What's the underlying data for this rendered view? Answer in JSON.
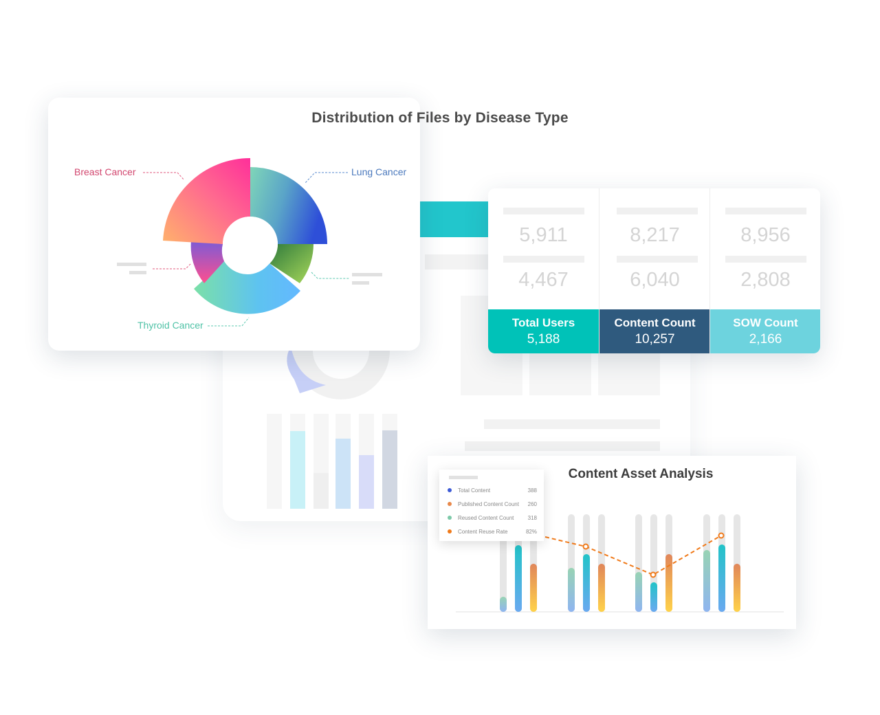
{
  "donut_card": {
    "title": "Distribution of Files by Disease Type",
    "labels": {
      "breast": "Breast Cancer",
      "lung": "Lung Cancer",
      "thyroid": "Thyroid Cancer"
    }
  },
  "stats": [
    {
      "faint_top": "5,911",
      "faint_bottom": "4,467",
      "label": "Total Users",
      "value": "5,188",
      "color": "#00c2b8"
    },
    {
      "faint_top": "8,217",
      "faint_bottom": "6,040",
      "label": "Content Count",
      "value": "10,257",
      "color": "#2f5a7e"
    },
    {
      "faint_top": "8,956",
      "faint_bottom": "2,808",
      "label": "SOW Count",
      "value": "2,166",
      "color": "#6dd3de"
    }
  ],
  "asset_card": {
    "title": "Content Asset Analysis",
    "legend": [
      {
        "name": "Total Content",
        "value": "388",
        "color": "#3d5bd6"
      },
      {
        "name": "Published Content Count",
        "value": "260",
        "color": "#e8884a"
      },
      {
        "name": "Reused Content Count",
        "value": "318",
        "color": "#7cc9a8"
      },
      {
        "name": "Content Reuse Rate",
        "value": "82%",
        "color": "#f07a1a"
      }
    ]
  },
  "colors": {
    "accent_teal": "#22c6cc",
    "total_users": "#00c2b8",
    "content_count": "#2f5a7e",
    "sow_count": "#6dd3de"
  }
}
